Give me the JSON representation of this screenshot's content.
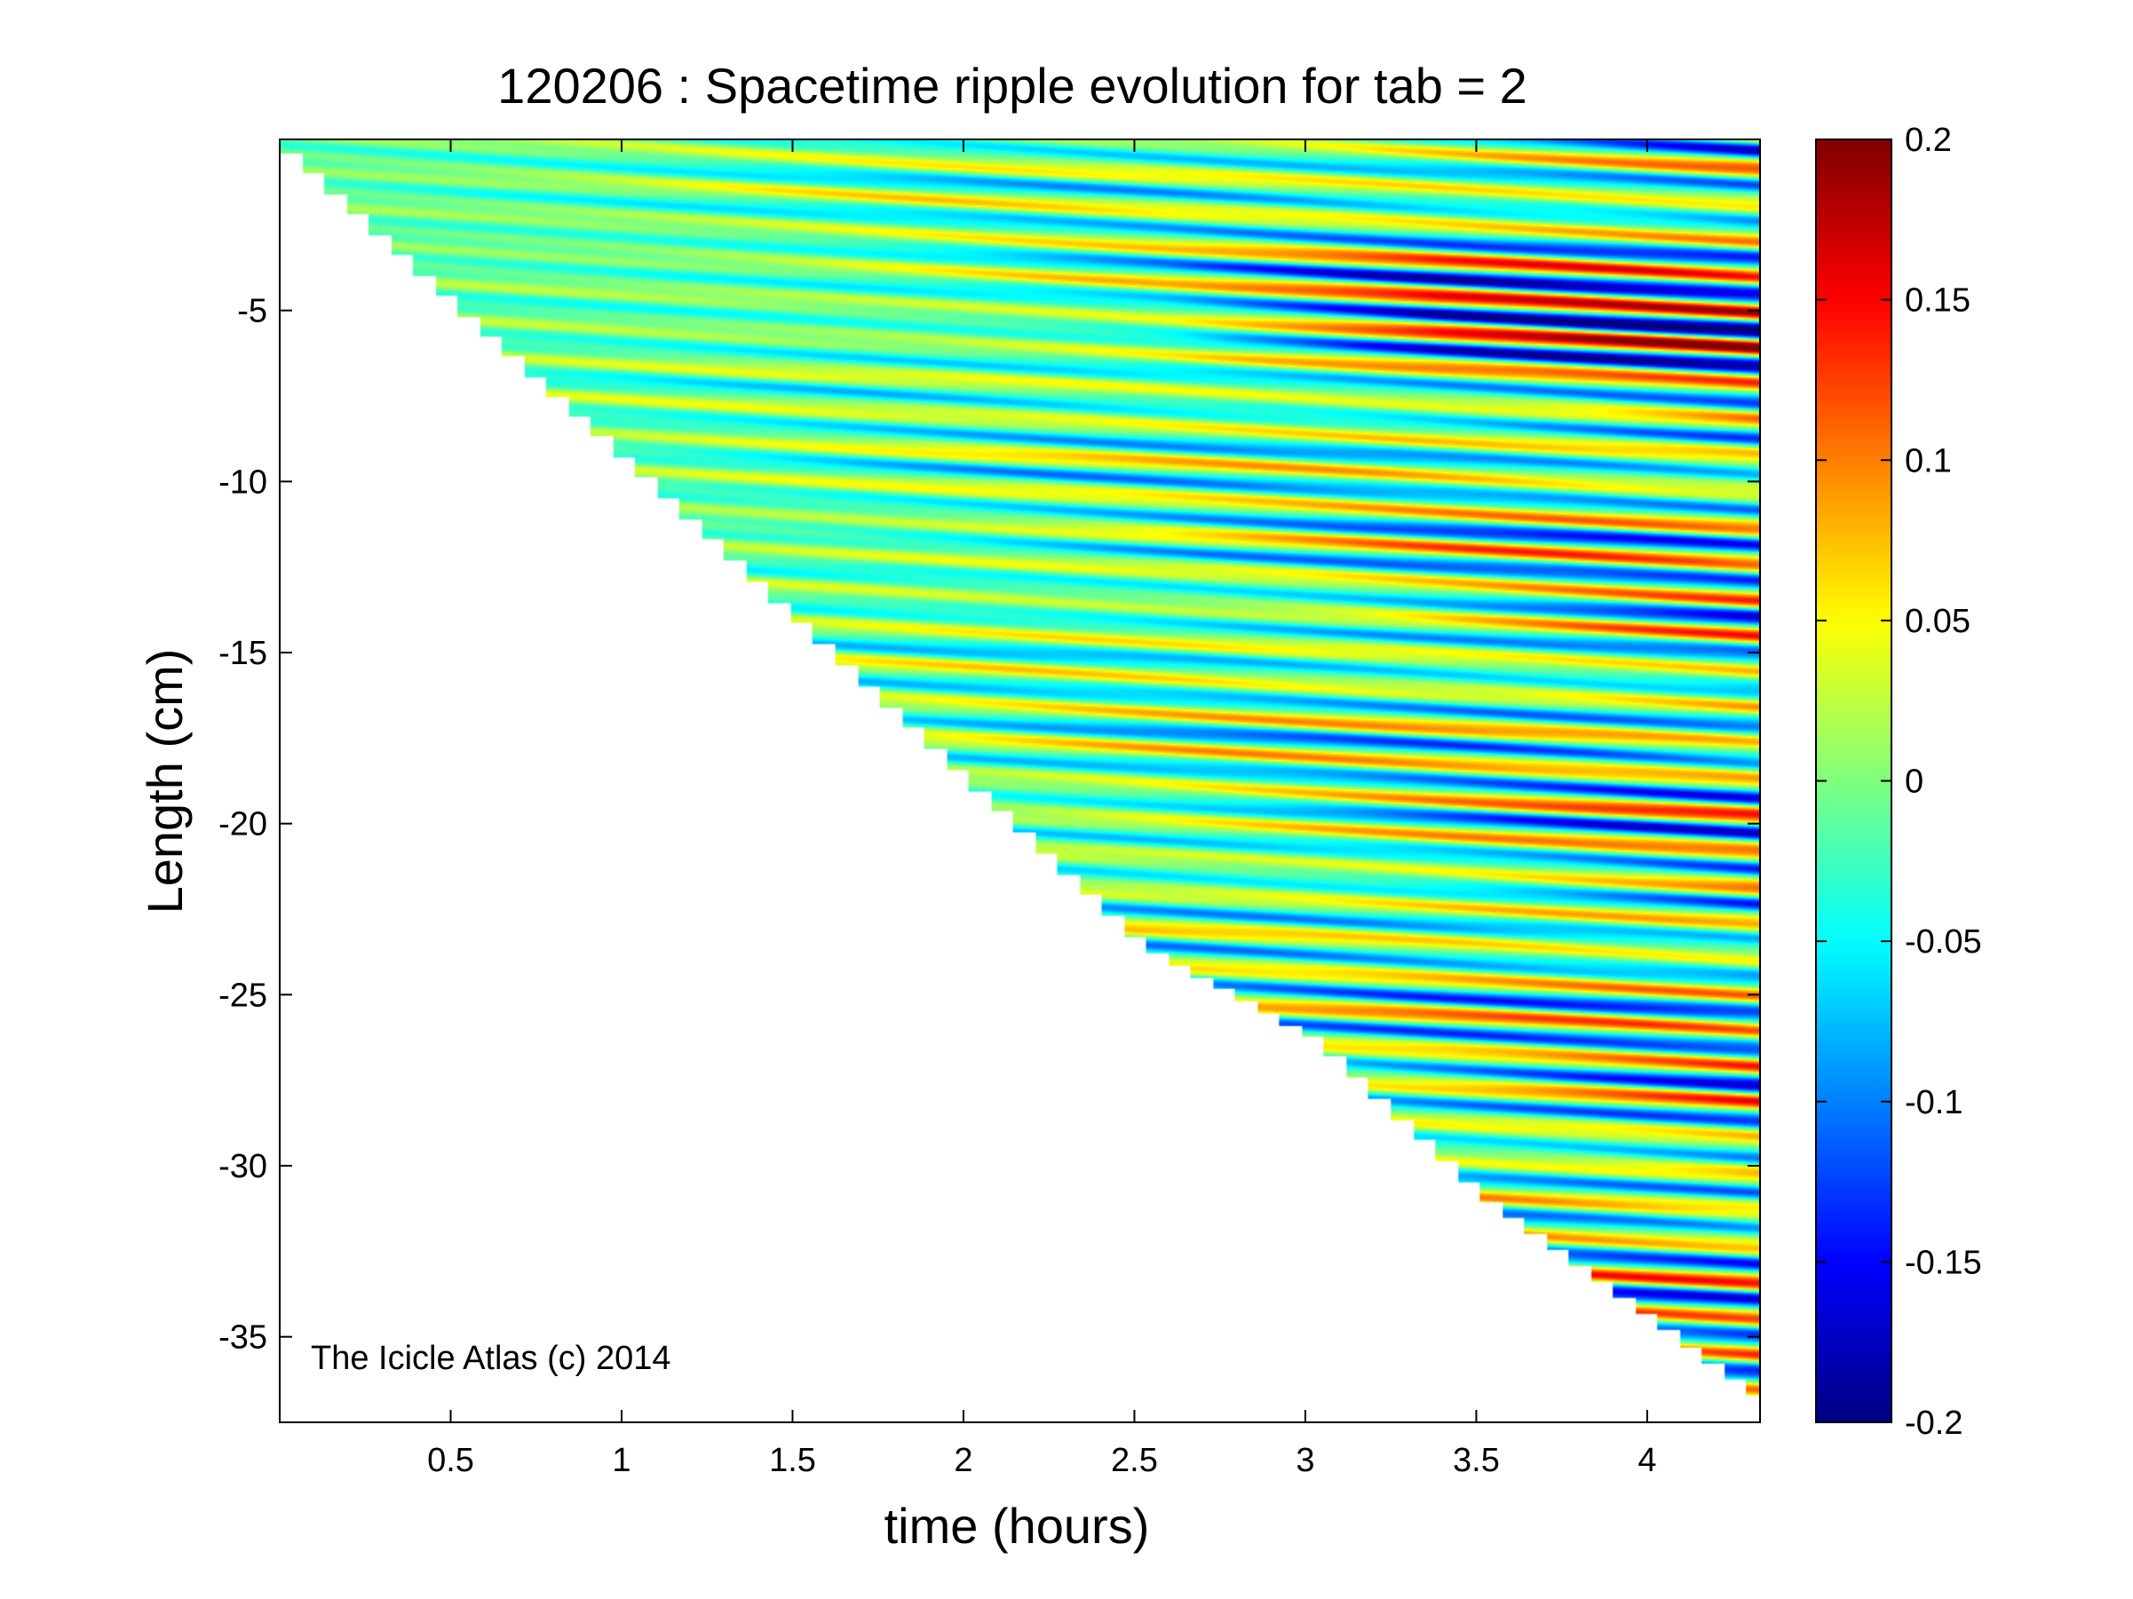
{
  "chart_data": {
    "type": "heatmap",
    "title": "120206 : Spacetime ripple evolution for tab = 2",
    "xlabel": "time (hours)",
    "ylabel": "Length (cm)",
    "xlim": [
      0.0,
      4.33
    ],
    "ylim": [
      -37.5,
      0.0
    ],
    "xticks": [
      0.5,
      1,
      1.5,
      2,
      2.5,
      3,
      3.5,
      4
    ],
    "xtick_labels": [
      "0.5",
      "1",
      "1.5",
      "2",
      "2.5",
      "3",
      "3.5",
      "4"
    ],
    "yticks": [
      -5,
      -10,
      -15,
      -20,
      -25,
      -30,
      -35
    ],
    "ytick_labels": [
      "-5",
      "-10",
      "-15",
      "-20",
      "-25",
      "-30",
      "-35"
    ],
    "colormap": "jet",
    "clim": [
      -0.2,
      0.2
    ],
    "colorbar_ticks": [
      0.2,
      0.15,
      0.1,
      0.05,
      0,
      -0.05,
      -0.1,
      -0.15,
      -0.2
    ],
    "colorbar_tick_labels": [
      "0.2",
      "0.15",
      "0.1",
      "0.05",
      "0",
      "-0.05",
      "-0.1",
      "-0.15",
      "-0.2"
    ],
    "data_boundary": {
      "x": [
        0.0,
        0.5,
        1.0,
        1.5,
        2.0,
        2.5,
        3.0,
        3.5,
        4.0,
        4.3
      ],
      "min_length": [
        -0.4,
        -5.0,
        -9.5,
        -14.2,
        -18.9,
        -23.6,
        -26.3,
        -31.0,
        -34.6,
        -36.8
      ]
    },
    "ripple_wavelength_cm": 1.05,
    "ripple_drift_cm_per_hour": -0.5,
    "amplitude_growth": {
      "t": [
        0.0,
        1.0,
        2.0,
        3.0,
        4.0,
        4.3
      ],
      "typical_amplitude": [
        0.02,
        0.04,
        0.07,
        0.1,
        0.14,
        0.15
      ]
    },
    "strongest_band": {
      "length_cm": -5.0,
      "t_range": [
        3.2,
        4.3
      ],
      "value_range": [
        -0.2,
        0.15
      ]
    },
    "grid": false,
    "legend": "none",
    "annotations": [
      "The Icicle Atlas (c) 2014"
    ]
  }
}
